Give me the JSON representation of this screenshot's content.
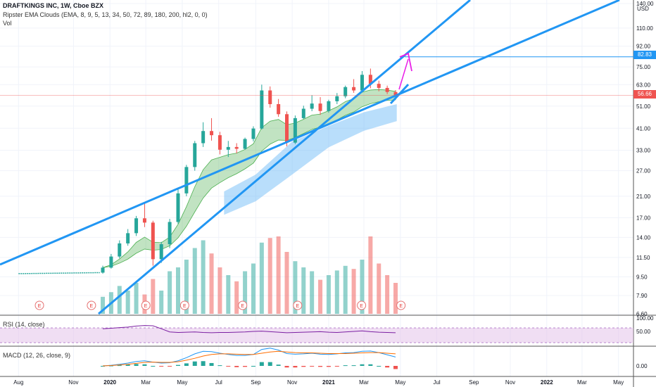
{
  "header": {
    "title": "DRAFTKINGS INC, 1W, Cboe BZX",
    "indicator": "Ripster EMA Clouds (EMA, 8, 9, 5, 13, 34, 50, 72, 89, 180, 200, hl2, 0, 0)",
    "volume_label": "Vol",
    "rsi_label": "RSI (14, close)",
    "macd_label": "MACD (12, 26, close, 9)"
  },
  "price_axis": {
    "currency": "USD",
    "ticks": [
      "140.00",
      "110.00",
      "92.00",
      "75.00",
      "63.00",
      "51.00",
      "41.00",
      "33.00",
      "27.00",
      "21.00",
      "17.00",
      "14.00",
      "11.50",
      "9.50",
      "7.90",
      "6.60"
    ],
    "last_price_tag": "56.66",
    "target_tag": "82.83"
  },
  "rsi_axis": {
    "ticks": [
      "100.00",
      "50.00"
    ]
  },
  "macd_axis": {
    "ticks": [
      "0.00"
    ]
  },
  "time_axis": {
    "labels": [
      "Aug",
      "Nov",
      "2020",
      "Mar",
      "May",
      "Jul",
      "Sep",
      "Nov",
      "2021",
      "Mar",
      "May",
      "Jul",
      "Sep",
      "Nov",
      "2022",
      "Mar",
      "May"
    ]
  },
  "earnings_marker": "E",
  "colors": {
    "up": "#26a69a",
    "down": "#ef5350",
    "trendline": "#2196f3",
    "arrow": "#e91ee8",
    "ema_cloud": "#4caf50",
    "long_cloud": "#64b5f6",
    "rsi_line": "#7b1fa2",
    "rsi_band": "#e1bee7",
    "macd_line": "#2196f3",
    "signal_line": "#ff6d00",
    "last_price": "#ef5350"
  },
  "chart_data": {
    "type": "candlestick",
    "title": "DRAFTKINGS INC, 1W, Cboe BZX",
    "y_scale": "log",
    "ylim": [
      6.6,
      140
    ],
    "x_range": [
      "2019-07",
      "2022-06"
    ],
    "grid": true,
    "last_price": 56.66,
    "target_price": 82.83,
    "candles": [
      {
        "date": "2019-12-20",
        "o": 9.9,
        "h": 10.6,
        "l": 9.8,
        "c": 10.4
      },
      {
        "date": "2020-01-03",
        "o": 10.4,
        "h": 11.9,
        "l": 10.3,
        "c": 11.6
      },
      {
        "date": "2020-01-17",
        "o": 11.6,
        "h": 13.6,
        "l": 11.4,
        "c": 13.2
      },
      {
        "date": "2020-01-31",
        "o": 13.2,
        "h": 15.2,
        "l": 12.9,
        "c": 14.6
      },
      {
        "date": "2020-02-14",
        "o": 14.6,
        "h": 17.3,
        "l": 14.2,
        "c": 16.9
      },
      {
        "date": "2020-02-28",
        "o": 16.9,
        "h": 19.8,
        "l": 15.5,
        "c": 16.2
      },
      {
        "date": "2020-03-13",
        "o": 16.2,
        "h": 16.5,
        "l": 10.6,
        "c": 11.3
      },
      {
        "date": "2020-03-27",
        "o": 11.3,
        "h": 13.4,
        "l": 10.9,
        "c": 13.1
      },
      {
        "date": "2020-04-10",
        "o": 13.1,
        "h": 16.8,
        "l": 12.6,
        "c": 16.3
      },
      {
        "date": "2020-04-24",
        "o": 16.3,
        "h": 22.5,
        "l": 16.0,
        "c": 21.6
      },
      {
        "date": "2020-05-08",
        "o": 21.6,
        "h": 28.6,
        "l": 21.0,
        "c": 28.0
      },
      {
        "date": "2020-05-22",
        "o": 28.0,
        "h": 36.2,
        "l": 27.0,
        "c": 35.4
      },
      {
        "date": "2020-06-05",
        "o": 35.4,
        "h": 43.5,
        "l": 34.1,
        "c": 39.9
      },
      {
        "date": "2020-06-19",
        "o": 39.9,
        "h": 45.3,
        "l": 36.3,
        "c": 38.3
      },
      {
        "date": "2020-07-03",
        "o": 38.3,
        "h": 39.6,
        "l": 31.7,
        "c": 33.2
      },
      {
        "date": "2020-07-17",
        "o": 33.2,
        "h": 36.2,
        "l": 30.9,
        "c": 34.1
      },
      {
        "date": "2020-07-31",
        "o": 34.1,
        "h": 35.4,
        "l": 32.0,
        "c": 33.5
      },
      {
        "date": "2020-08-14",
        "o": 33.5,
        "h": 37.4,
        "l": 33.2,
        "c": 36.9
      },
      {
        "date": "2020-08-28",
        "o": 36.9,
        "h": 41.8,
        "l": 36.0,
        "c": 40.9
      },
      {
        "date": "2020-09-11",
        "o": 40.9,
        "h": 63.0,
        "l": 40.5,
        "c": 59.5
      },
      {
        "date": "2020-09-25",
        "o": 59.5,
        "h": 61.9,
        "l": 50.2,
        "c": 52.0
      },
      {
        "date": "2020-10-09",
        "o": 52.0,
        "h": 54.7,
        "l": 45.9,
        "c": 47.1
      },
      {
        "date": "2020-10-23",
        "o": 47.1,
        "h": 48.4,
        "l": 34.3,
        "c": 35.6
      },
      {
        "date": "2020-11-06",
        "o": 35.6,
        "h": 46.5,
        "l": 35.1,
        "c": 45.3
      },
      {
        "date": "2020-11-20",
        "o": 45.3,
        "h": 51.2,
        "l": 44.9,
        "c": 49.7
      },
      {
        "date": "2020-12-04",
        "o": 49.7,
        "h": 56.8,
        "l": 48.5,
        "c": 52.3
      },
      {
        "date": "2020-12-18",
        "o": 52.3,
        "h": 55.7,
        "l": 46.8,
        "c": 48.6
      },
      {
        "date": "2021-01-01",
        "o": 48.6,
        "h": 54.3,
        "l": 47.8,
        "c": 53.5
      },
      {
        "date": "2021-01-15",
        "o": 53.5,
        "h": 58.0,
        "l": 52.0,
        "c": 56.2
      },
      {
        "date": "2021-01-29",
        "o": 56.2,
        "h": 62.4,
        "l": 55.1,
        "c": 61.5
      },
      {
        "date": "2021-02-12",
        "o": 61.5,
        "h": 66.5,
        "l": 58.1,
        "c": 59.5
      },
      {
        "date": "2021-02-26",
        "o": 59.5,
        "h": 72.0,
        "l": 58.2,
        "c": 69.4
      },
      {
        "date": "2021-03-12",
        "o": 69.4,
        "h": 73.8,
        "l": 60.8,
        "c": 63.5
      },
      {
        "date": "2021-03-26",
        "o": 63.5,
        "h": 65.5,
        "l": 59.0,
        "c": 61.0
      },
      {
        "date": "2021-04-09",
        "o": 61.0,
        "h": 62.4,
        "l": 57.4,
        "c": 58.6
      },
      {
        "date": "2021-04-23",
        "o": 58.6,
        "h": 59.7,
        "l": 55.5,
        "c": 56.66
      }
    ],
    "volume": [
      22,
      28,
      36,
      30,
      40,
      25,
      45,
      30,
      55,
      60,
      70,
      85,
      95,
      78,
      60,
      50,
      42,
      55,
      65,
      92,
      98,
      100,
      80,
      68,
      60,
      55,
      44,
      50,
      56,
      62,
      58,
      70,
      100,
      65,
      50,
      40
    ],
    "rsi": [
      60,
      62,
      64,
      66,
      70,
      72,
      71,
      60,
      48,
      46,
      47,
      48,
      46,
      45,
      46,
      46,
      47,
      48,
      50,
      51,
      49,
      47,
      45,
      46,
      47,
      48,
      49,
      47,
      46,
      48,
      50,
      52,
      49,
      47,
      46,
      45
    ],
    "macd": [
      0.0,
      0.2,
      0.5,
      0.9,
      1.4,
      1.6,
      1.2,
      0.9,
      1.0,
      1.6,
      2.6,
      3.8,
      4.6,
      4.5,
      4.0,
      3.6,
      3.3,
      3.3,
      3.6,
      5.2,
      5.6,
      5.0,
      3.9,
      3.7,
      3.8,
      4.0,
      3.7,
      3.6,
      3.8,
      4.1,
      4.2,
      4.6,
      4.7,
      4.2,
      3.5,
      2.8
    ],
    "signal": [
      0.0,
      0.1,
      0.3,
      0.5,
      0.8,
      1.1,
      1.2,
      1.1,
      1.1,
      1.3,
      1.8,
      2.4,
      3.1,
      3.6,
      3.8,
      3.8,
      3.7,
      3.6,
      3.6,
      4.0,
      4.4,
      4.6,
      4.4,
      4.2,
      4.1,
      4.1,
      4.0,
      3.9,
      3.9,
      3.9,
      4.0,
      4.1,
      4.2,
      4.2,
      4.0,
      3.8
    ]
  }
}
